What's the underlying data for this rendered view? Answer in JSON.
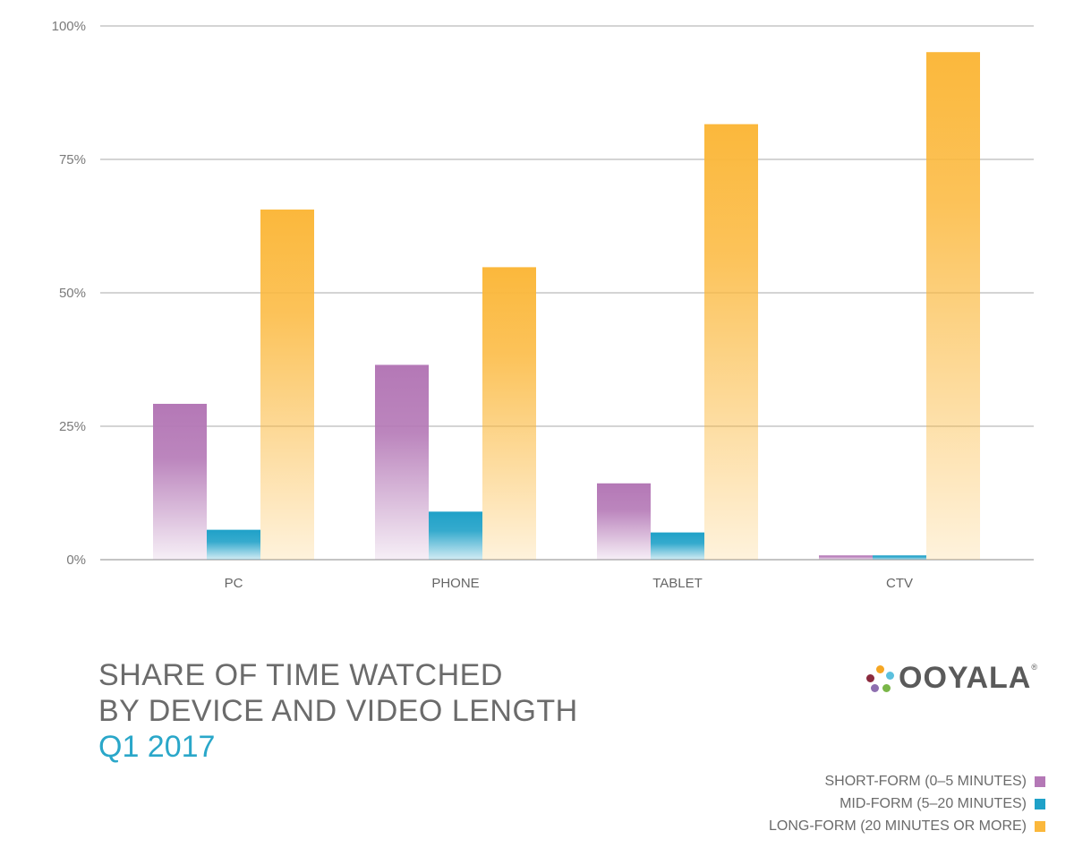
{
  "chart_data": {
    "type": "bar",
    "title": "SHARE OF TIME WATCHED BY DEVICE AND VIDEO LENGTH",
    "subtitle": "Q1 2017",
    "categories": [
      "PC",
      "PHONE",
      "TABLET",
      "CTV"
    ],
    "series": [
      {
        "name": "SHORT-FORM (0–5 MINUTES)",
        "color": "#b478b6",
        "values": [
          29.2,
          36.5,
          14.3,
          0.8
        ]
      },
      {
        "name": "MID-FORM (5–20 MINUTES)",
        "color": "#1fa1c8",
        "values": [
          5.6,
          9.0,
          5.1,
          0.8
        ]
      },
      {
        "name": "LONG-FORM (20 MINUTES OR MORE)",
        "color": "#fbb83c",
        "values": [
          65.6,
          54.8,
          81.6,
          95.1
        ]
      }
    ],
    "yticks": [
      "0%",
      "25%",
      "50%",
      "75%",
      "100%"
    ],
    "ylim": [
      0,
      100
    ],
    "grid": true,
    "legend_position": "bottom-right"
  },
  "title_lines": [
    "SHARE OF TIME WATCHED",
    "BY DEVICE AND VIDEO LENGTH"
  ],
  "subtitle": "Q1 2017",
  "logo": {
    "text": "OOYALA",
    "mark": "®",
    "dot_colors": [
      "#8b2a3e",
      "#f5a623",
      "#5bc0de",
      "#8e6fb0",
      "#7ab648"
    ]
  },
  "legend": [
    {
      "label": "SHORT-FORM (0–5 MINUTES)",
      "color": "#b478b6"
    },
    {
      "label": "MID-FORM (5–20 MINUTES)",
      "color": "#1fa1c8"
    },
    {
      "label": "LONG-FORM (20 MINUTES OR MORE)",
      "color": "#fbb83c"
    }
  ]
}
